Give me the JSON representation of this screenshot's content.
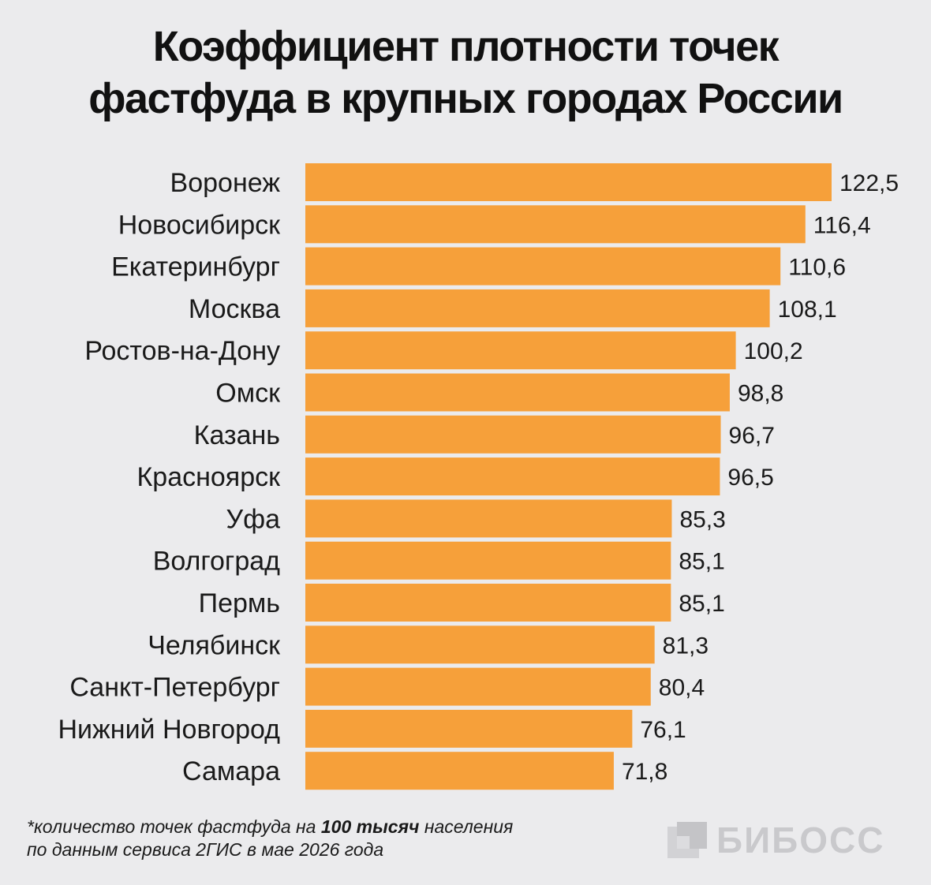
{
  "title_lines": [
    "Коэффициент плотности точек",
    "фастфуда в крупных городах России"
  ],
  "chart_data": {
    "type": "bar",
    "orientation": "horizontal",
    "categories": [
      "Воронеж",
      "Новосибирск",
      "Екатеринбург",
      "Москва",
      "Ростов-на-Дону",
      "Омск",
      "Казань",
      "Красноярск",
      "Уфа",
      "Волгоград",
      "Пермь",
      "Челябинск",
      "Санкт-Петербург",
      "Нижний Новгород",
      "Самара"
    ],
    "values": [
      122.5,
      116.4,
      110.6,
      108.1,
      100.2,
      98.8,
      96.7,
      96.5,
      85.3,
      85.1,
      85.1,
      81.3,
      80.4,
      76.1,
      71.8
    ],
    "value_labels": [
      "122,5",
      "116,4",
      "110,6",
      "108,1",
      "100,2",
      "98,8",
      "96,7",
      "96,5",
      "85,3",
      "85,1",
      "85,1",
      "81,3",
      "80,4",
      "76,1",
      "71,8"
    ],
    "xlim": [
      0,
      122.5
    ],
    "bar_color": "#f6a03a",
    "grid": false,
    "legend": "none"
  },
  "footnote": {
    "line1_before": "*количество точек фастфуда на ",
    "line1_bold": "100 тысяч",
    "line1_after": " населения",
    "line2": "по данным сервиса 2ГИС в мае 2026 года"
  },
  "logo": {
    "text": "БИБОСС",
    "icon": "bibos-logo-icon",
    "color": "#c9c9cc"
  }
}
